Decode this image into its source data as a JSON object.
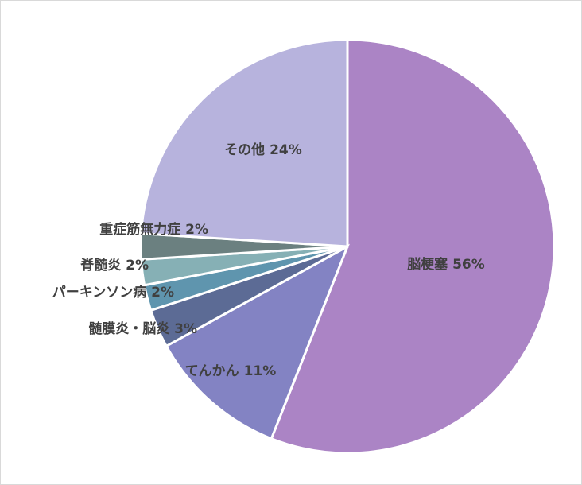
{
  "chart_data": {
    "type": "pie",
    "slices": [
      {
        "label": "脳梗塞",
        "value": 56,
        "text": "脳梗塞 56%",
        "color": "#ab84c5"
      },
      {
        "label": "てんかん",
        "value": 11,
        "text": "てんかん 11%",
        "color": "#8383c3"
      },
      {
        "label": "髄膜炎・脳炎",
        "value": 3,
        "text": "髄膜炎・脳炎 3%",
        "color": "#5c6b95"
      },
      {
        "label": "パーキンソン病",
        "value": 2,
        "text": "パーキンソン病 2%",
        "color": "#5f95ae"
      },
      {
        "label": "脊髄炎",
        "value": 2,
        "text": "脊髄炎 2%",
        "color": "#86b0b5"
      },
      {
        "label": "重症筋無力症",
        "value": 2,
        "text": "重症筋無力症 2%",
        "color": "#6b8080"
      },
      {
        "label": "その他",
        "value": 24,
        "text": "その他 24%",
        "color": "#b7b3dd"
      }
    ],
    "start_angle_deg": 0,
    "direction": "clockwise"
  }
}
